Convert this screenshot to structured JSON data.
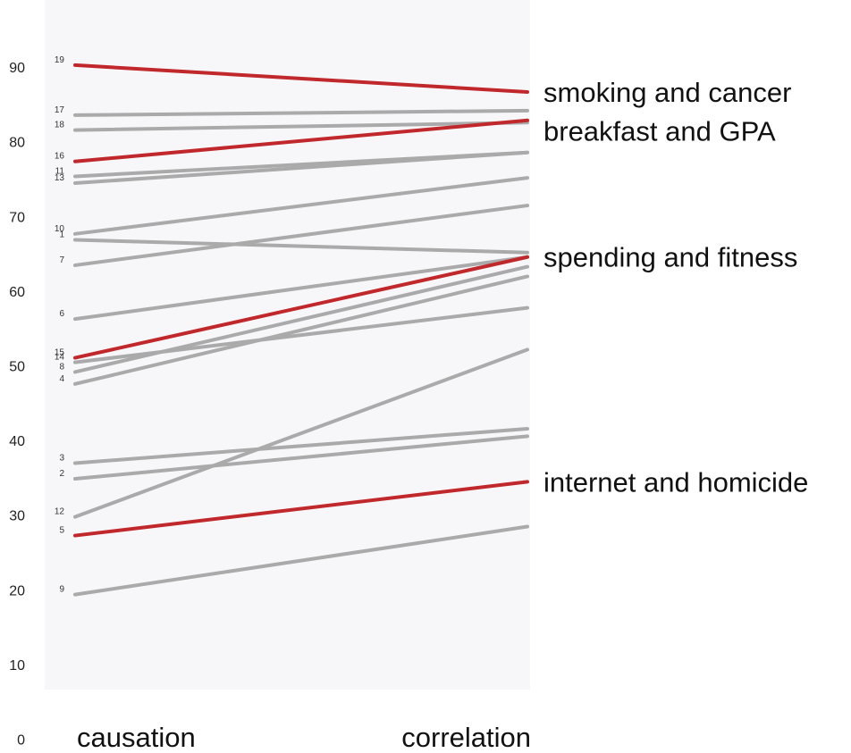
{
  "chart_data": {
    "type": "line",
    "title": "",
    "xlabel": "",
    "ylabel": "",
    "ylim": [
      0,
      100
    ],
    "yticks": [
      0,
      10,
      20,
      30,
      40,
      50,
      60,
      70,
      80,
      90,
      100
    ],
    "categories": [
      "causation",
      "correlation"
    ],
    "grid": false,
    "colors": {
      "highlight": "#c0282b",
      "other": "#aaaaaa",
      "panel": "#f7f7fa"
    },
    "series": [
      {
        "name": "19",
        "values": [
          91.7,
          88.1
        ],
        "highlight": true
      },
      {
        "name": "17",
        "values": [
          85.0,
          85.6
        ],
        "highlight": false
      },
      {
        "name": "18",
        "values": [
          83.0,
          84.0
        ],
        "highlight": false
      },
      {
        "name": "16",
        "values": [
          78.8,
          84.3
        ],
        "highlight": true
      },
      {
        "name": "11",
        "values": [
          76.8,
          80.0
        ],
        "highlight": false
      },
      {
        "name": "13",
        "values": [
          75.9,
          80.0
        ],
        "highlight": false
      },
      {
        "name": "10",
        "values": [
          69.1,
          76.6
        ],
        "highlight": false
      },
      {
        "name": "1",
        "values": [
          68.3,
          66.6
        ],
        "highlight": false
      },
      {
        "name": "7",
        "values": [
          64.9,
          72.9
        ],
        "highlight": false
      },
      {
        "name": "6",
        "values": [
          57.7,
          66.0
        ],
        "highlight": false
      },
      {
        "name": "15",
        "values": [
          52.5,
          66.0
        ],
        "highlight": true
      },
      {
        "name": "14",
        "values": [
          51.9,
          59.2
        ],
        "highlight": false
      },
      {
        "name": "8",
        "values": [
          50.6,
          64.7
        ],
        "highlight": false
      },
      {
        "name": "4",
        "values": [
          49.0,
          63.4
        ],
        "highlight": false
      },
      {
        "name": "3",
        "values": [
          38.4,
          43.0
        ],
        "highlight": false
      },
      {
        "name": "2",
        "values": [
          36.3,
          42.0
        ],
        "highlight": false
      },
      {
        "name": "12",
        "values": [
          31.2,
          53.6
        ],
        "highlight": false
      },
      {
        "name": "5",
        "values": [
          28.7,
          35.9
        ],
        "highlight": true
      },
      {
        "name": "9",
        "values": [
          20.8,
          29.9
        ],
        "highlight": false
      }
    ],
    "annotations": [
      {
        "text": "smoking and cancer",
        "y": 88.1
      },
      {
        "text": "breakfast and GPA",
        "y": 82.9
      },
      {
        "text": "spending and fitness",
        "y": 66.0
      },
      {
        "text": "internet and homicide",
        "y": 35.9
      }
    ]
  }
}
